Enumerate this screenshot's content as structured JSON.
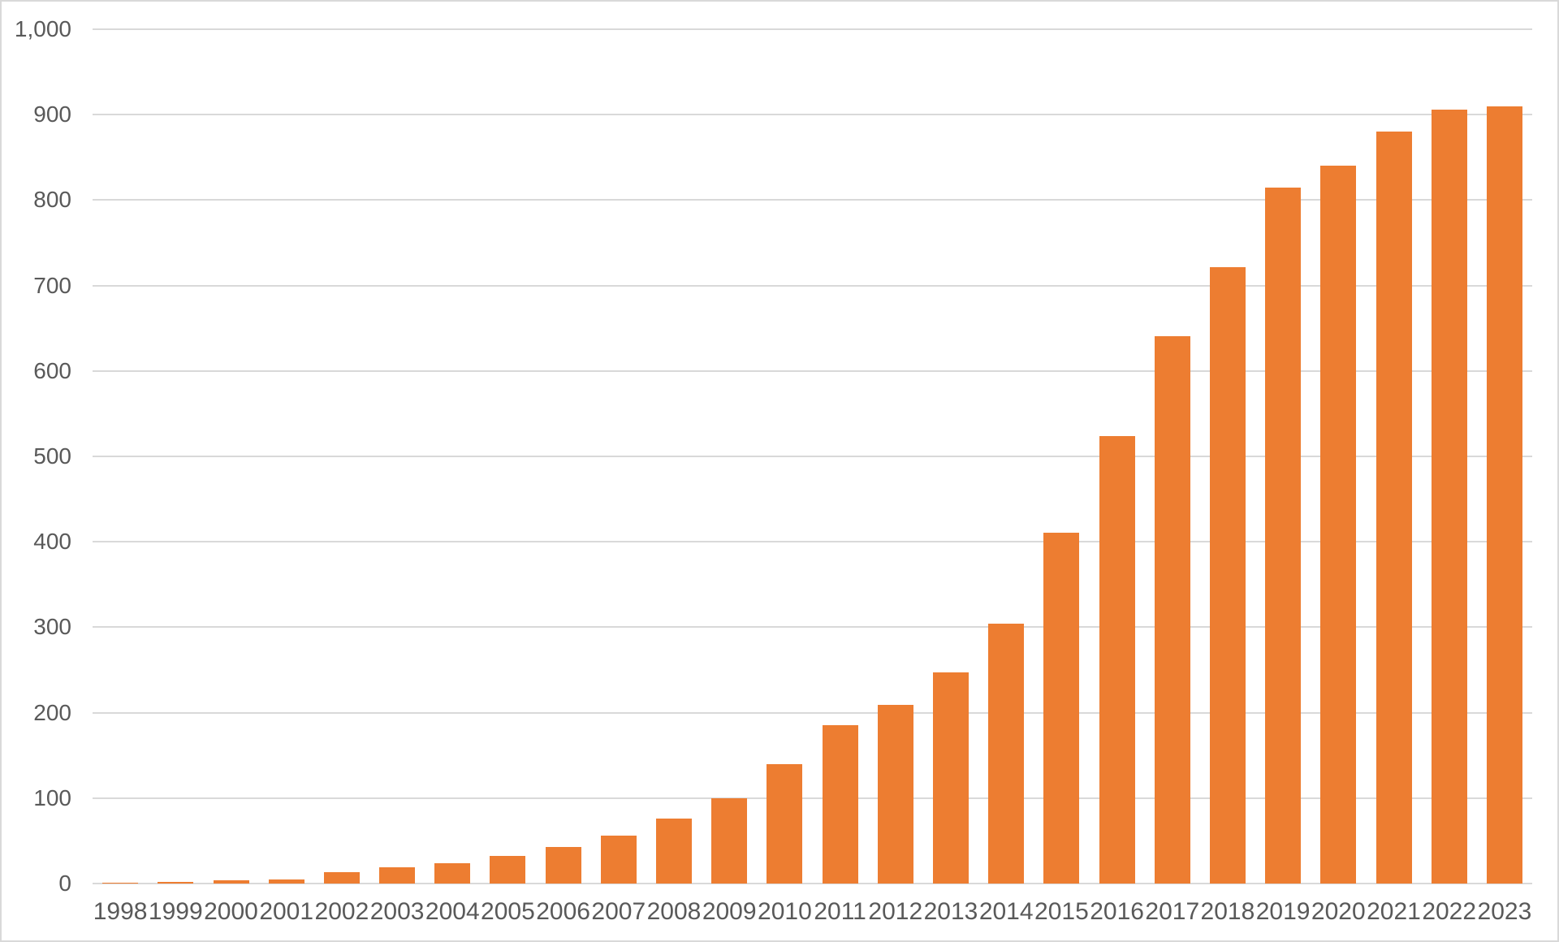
{
  "chart": {
    "background_color": "#FFFFFF",
    "border_color": "#D9D9D9",
    "bar_color": "#ED7D31",
    "gridline_color": "#D9D9D9",
    "axis_label_color": "#595959"
  },
  "chart_data": {
    "type": "bar",
    "title": "",
    "xlabel": "",
    "ylabel": "",
    "categories": [
      "1998",
      "1999",
      "2000",
      "2001",
      "2002",
      "2003",
      "2004",
      "2005",
      "2006",
      "2007",
      "2008",
      "2009",
      "2010",
      "2011",
      "2012",
      "2013",
      "2014",
      "2015",
      "2016",
      "2017",
      "2018",
      "2019",
      "2020",
      "2021",
      "2022",
      "2023"
    ],
    "values": [
      1,
      2,
      4,
      5,
      13,
      19,
      24,
      32,
      43,
      56,
      76,
      100,
      140,
      185,
      209,
      247,
      304,
      411,
      524,
      641,
      722,
      815,
      840,
      880,
      906,
      910
    ],
    "ylim": [
      0,
      1000
    ],
    "yticks": [
      0,
      100,
      200,
      300,
      400,
      500,
      600,
      700,
      800,
      900,
      1000
    ],
    "ytick_labels": [
      "0",
      "100",
      "200",
      "300",
      "400",
      "500",
      "600",
      "700",
      "800",
      "900",
      "1,000"
    ],
    "grid": true,
    "legend": false,
    "orientation": "vertical"
  }
}
